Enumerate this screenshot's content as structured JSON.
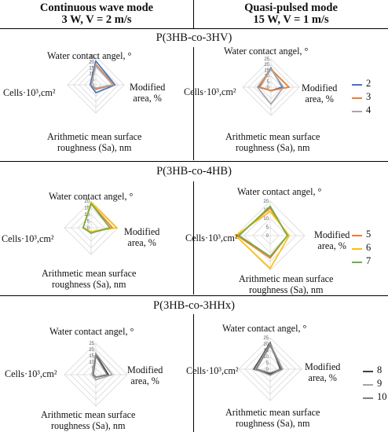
{
  "headers": {
    "left_line1": "Continuous wave mode",
    "left_line2": "3 W, V = 2 m/s",
    "right_line1": "Quasi-pulsed mode",
    "right_line2": "15 W, V = 1 m/s"
  },
  "axis_labels": {
    "top": "Water contact angel, °",
    "right_line1": "Modified",
    "right_line2": "area, %",
    "bottom_line1": "Arithmetic mean surface",
    "bottom_line2": "roughness (Sa), nm",
    "left": "Cells·10³,cm²"
  },
  "colors": {
    "s2": "#4472c4",
    "s3": "#ed7d31",
    "s4": "#a5a5a5",
    "s5": "#ed7d31",
    "s6": "#ffc000",
    "s7": "#70ad47",
    "s8": "#404040",
    "s9": "#a5a5a5",
    "s10": "#7f7f7f",
    "grid": "#d9d9d9"
  },
  "sections": [
    {
      "title": "P(3HB-co-3HV)",
      "legend": [
        "2",
        "3",
        "4"
      ]
    },
    {
      "title": "P(3HB-co-4HB)",
      "legend": [
        "5",
        "6",
        "7"
      ]
    },
    {
      "title": "P(3HB-co-3HHx)",
      "legend": [
        "8",
        "9",
        "10"
      ]
    }
  ],
  "chart_data": [
    {
      "type": "radar",
      "section": "P(3HB-co-3HV)",
      "mode": "Continuous wave mode",
      "axes": [
        "Water contact angel, °",
        "Modified area, %",
        "Arithmetic mean surface roughness (Sa), nm",
        "Cells·10³,cm²"
      ],
      "ticks": [
        0,
        5,
        10,
        15,
        20,
        25
      ],
      "rmax": 25,
      "series": [
        {
          "name": "2",
          "values": [
            21,
            17,
            7,
            5
          ]
        },
        {
          "name": "3",
          "values": [
            18,
            16,
            4,
            4
          ]
        },
        {
          "name": "4",
          "values": [
            17,
            15,
            3,
            4
          ]
        }
      ]
    },
    {
      "type": "radar",
      "section": "P(3HB-co-3HV)",
      "mode": "Quasi-pulsed mode",
      "axes": [
        "Water contact angel, °",
        "Modified area, %",
        "Arithmetic mean surface roughness (Sa), nm",
        "Cells·10³,cm²"
      ],
      "ticks": [
        0,
        5,
        10,
        15,
        20,
        25
      ],
      "rmax": 25,
      "series": [
        {
          "name": "2",
          "values": [
            17,
            10,
            3,
            11
          ]
        },
        {
          "name": "3",
          "values": [
            16,
            16,
            3,
            10
          ]
        },
        {
          "name": "4",
          "values": [
            16,
            11,
            15,
            12
          ]
        }
      ]
    },
    {
      "type": "radar",
      "section": "P(3HB-co-4HB)",
      "mode": "Continuous wave mode",
      "axes": [
        "Water contact angel, °",
        "Modified area, %",
        "Arithmetic mean surface roughness (Sa), nm",
        "Cells·10³,cm²"
      ],
      "ticks": [
        0,
        5,
        10,
        15,
        20
      ],
      "rmax": 20,
      "series": [
        {
          "name": "5",
          "values": [
            18,
            16,
            3,
            6
          ]
        },
        {
          "name": "6",
          "values": [
            19,
            19,
            3,
            6
          ]
        },
        {
          "name": "7",
          "values": [
            18,
            14,
            4,
            6
          ]
        }
      ]
    },
    {
      "type": "radar",
      "section": "P(3HB-co-4HB)",
      "mode": "Quasi-pulsed mode",
      "axes": [
        "Water contact angel, °",
        "Modified area, %",
        "Arithmetic mean surface roughness (Sa), nm",
        "Cells·10³,cm²"
      ],
      "ticks": [
        0,
        5,
        10,
        15,
        20
      ],
      "rmax": 20,
      "series": [
        {
          "name": "5",
          "values": [
            16,
            10,
            13,
            19
          ]
        },
        {
          "name": "6",
          "values": [
            14,
            11,
            19,
            20
          ]
        },
        {
          "name": "7",
          "values": [
            17,
            10,
            12,
            18
          ]
        }
      ]
    },
    {
      "type": "radar",
      "section": "P(3HB-co-3HHx)",
      "mode": "Continuous wave mode",
      "axes": [
        "Water contact angel, °",
        "Modified area, %",
        "Arithmetic mean surface roughness (Sa), nm",
        "Cells·10³,cm²"
      ],
      "ticks": [
        0,
        5,
        10,
        15,
        20,
        25
      ],
      "rmax": 25,
      "series": [
        {
          "name": "8",
          "values": [
            16,
            10,
            2,
            2
          ]
        },
        {
          "name": "9",
          "values": [
            17,
            13,
            4,
            3
          ]
        },
        {
          "name": "10",
          "values": [
            15,
            9,
            2,
            2
          ]
        }
      ]
    },
    {
      "type": "radar",
      "section": "P(3HB-co-3HHx)",
      "mode": "Quasi-pulsed mode",
      "axes": [
        "Water contact angel, °",
        "Modified area, %",
        "Arithmetic mean surface roughness (Sa), nm",
        "Cells·10³,cm²"
      ],
      "ticks": [
        0,
        5,
        10,
        15,
        20,
        25
      ],
      "rmax": 25,
      "series": [
        {
          "name": "8",
          "values": [
            21,
            8,
            4,
            13
          ]
        },
        {
          "name": "9",
          "values": [
            20,
            10,
            5,
            12
          ]
        },
        {
          "name": "10",
          "values": [
            19,
            9,
            3,
            11
          ]
        }
      ]
    }
  ]
}
